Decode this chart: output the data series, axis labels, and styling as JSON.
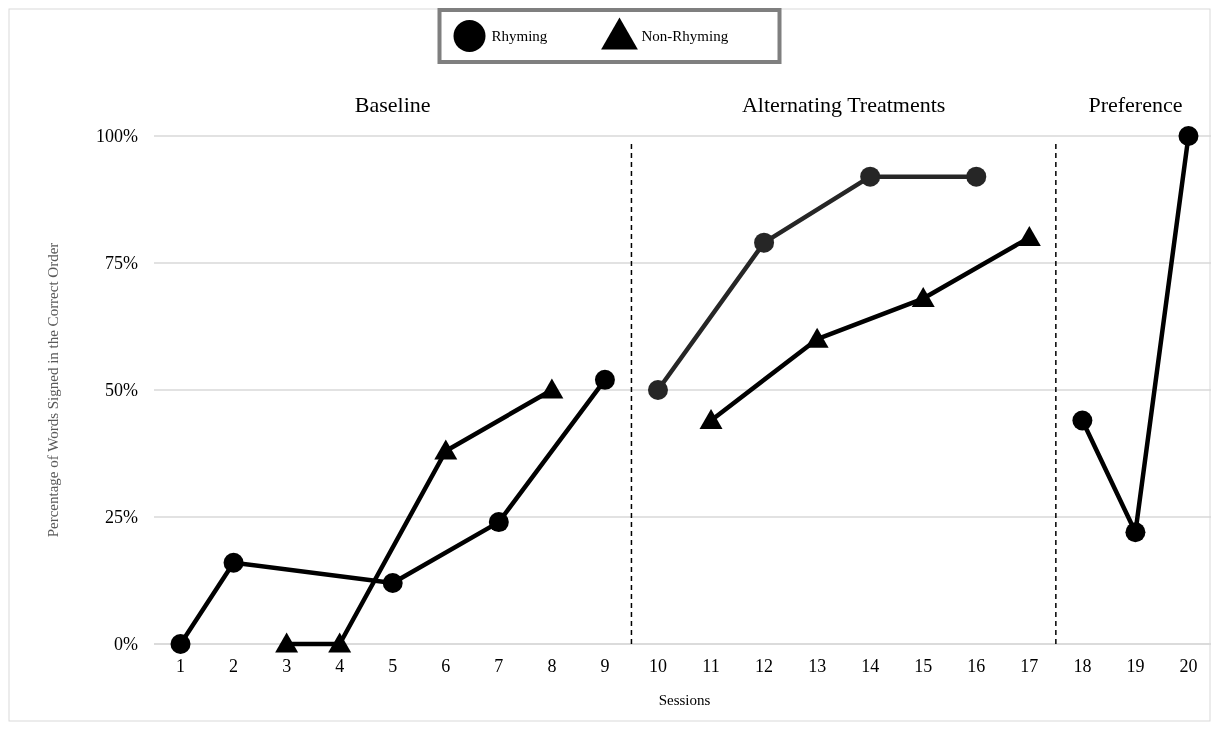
{
  "chart_data": {
    "type": "line",
    "xlabel": "Sessions",
    "ylabel": "Percentage of Words Signed in the Correct Order",
    "xlim": [
      0.5,
      20.5
    ],
    "xticks": [
      1,
      2,
      3,
      4,
      5,
      6,
      7,
      8,
      9,
      10,
      11,
      12,
      13,
      14,
      15,
      16,
      17,
      18,
      19,
      20
    ],
    "ylim": [
      0,
      100
    ],
    "yticks": [
      {
        "value": 0,
        "label": "0%"
      },
      {
        "value": 25,
        "label": "25%"
      },
      {
        "value": 50,
        "label": "50%"
      },
      {
        "value": 75,
        "label": "75%"
      },
      {
        "value": 100,
        "label": "100%"
      }
    ],
    "grid": "y",
    "legend": "top",
    "line_style": "solid",
    "ref_lines": [
      {
        "axis": "x",
        "value": 9.5,
        "line_style": "dashed",
        "color": "#000000"
      },
      {
        "axis": "x",
        "value": 17.5,
        "line_style": "dashed",
        "color": "#000000"
      }
    ],
    "annotations": [
      "Baseline",
      "Alternating Treatments",
      "Preference"
    ],
    "series": [
      {
        "name": "Rhyming",
        "color": "#000000",
        "marker": "circle",
        "x": [
          1,
          2,
          5,
          7,
          9
        ],
        "values": [
          0,
          16,
          12,
          24,
          52
        ]
      },
      {
        "name": "Non-Rhyming",
        "color": "#000000",
        "marker": "triangle",
        "x": [
          3,
          4,
          6,
          8
        ],
        "values": [
          0,
          0,
          38,
          50
        ]
      },
      {
        "color": "#262626",
        "marker": "circle",
        "x": [
          10,
          12,
          14,
          16
        ],
        "values": [
          50,
          79,
          92,
          92
        ]
      },
      {
        "color": "#000000",
        "marker": "triangle",
        "x": [
          11,
          13,
          15,
          17
        ],
        "values": [
          44,
          60,
          68,
          80
        ]
      },
      {
        "color": "#000000",
        "marker": "circle",
        "x": [
          18,
          19,
          20
        ],
        "values": [
          44,
          22,
          100
        ]
      }
    ]
  }
}
